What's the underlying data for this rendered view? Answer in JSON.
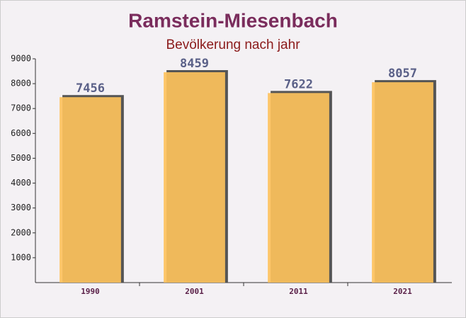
{
  "chart_data": {
    "type": "bar",
    "title": "Ramstein-Miesenbach",
    "subtitle": "Bevölkerung nach jahr",
    "categories": [
      "1990",
      "2001",
      "2011",
      "2021"
    ],
    "values": [
      7456,
      8459,
      7622,
      8057
    ],
    "color": "#fdc25c",
    "ylim": [
      0,
      9000
    ],
    "yticks": [
      1000,
      2000,
      3000,
      4000,
      5000,
      6000,
      7000,
      8000,
      9000
    ],
    "grid": false
  }
}
